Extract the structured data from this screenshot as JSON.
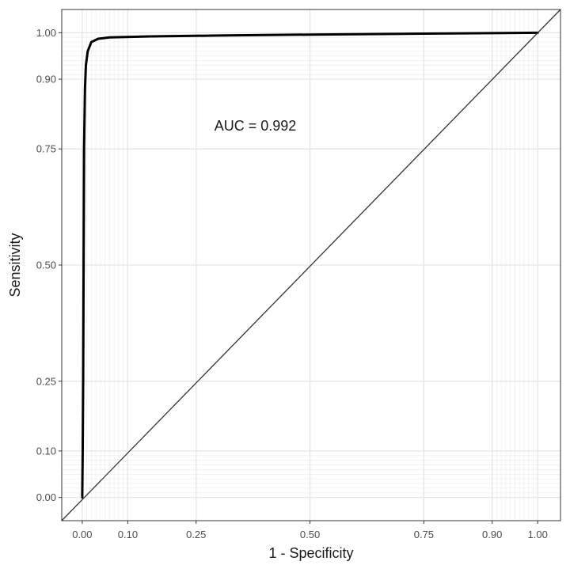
{
  "chart_data": {
    "type": "line",
    "title": "",
    "xlabel": "1 - Specificity",
    "ylabel": "Sensitivity",
    "xlim": [
      -0.045,
      1.05
    ],
    "ylim": [
      -0.05,
      1.05
    ],
    "x_ticks": [
      0.0,
      0.1,
      0.25,
      0.5,
      0.75,
      0.9,
      1.0
    ],
    "x_tick_labels": [
      "0.00",
      "0.10",
      "0.25",
      "0.50",
      "0.75",
      "0.90",
      "1.00"
    ],
    "y_ticks": [
      0.0,
      0.1,
      0.25,
      0.5,
      0.75,
      0.9,
      1.0
    ],
    "y_tick_labels": [
      "0.00",
      "0.10",
      "0.25",
      "0.50",
      "0.75",
      "0.90",
      "1.00"
    ],
    "minor_gridlines": [
      0.01,
      0.02,
      0.03,
      0.04,
      0.05,
      0.06,
      0.07,
      0.08,
      0.09,
      0.91,
      0.92,
      0.93,
      0.94,
      0.95,
      0.96,
      0.97,
      0.98,
      0.99
    ],
    "grid": true,
    "annotation": {
      "text": "AUC = 0.992",
      "x": 0.38,
      "y": 0.8
    },
    "series": [
      {
        "style": "bold",
        "color": "#000000",
        "points": [
          [
            0.0,
            0.0
          ],
          [
            0.001,
            0.1
          ],
          [
            0.002,
            0.25
          ],
          [
            0.003,
            0.5
          ],
          [
            0.004,
            0.75
          ],
          [
            0.006,
            0.88
          ],
          [
            0.008,
            0.93
          ],
          [
            0.012,
            0.96
          ],
          [
            0.02,
            0.98
          ],
          [
            0.035,
            0.987
          ],
          [
            0.06,
            0.99
          ],
          [
            0.15,
            0.992
          ],
          [
            0.3,
            0.994
          ],
          [
            0.5,
            0.996
          ],
          [
            0.75,
            0.998
          ],
          [
            1.0,
            1.0
          ]
        ]
      },
      {
        "style": "thin",
        "color": "#333333",
        "points": [
          [
            -0.045,
            -0.05
          ],
          [
            1.05,
            1.05
          ]
        ]
      }
    ]
  }
}
